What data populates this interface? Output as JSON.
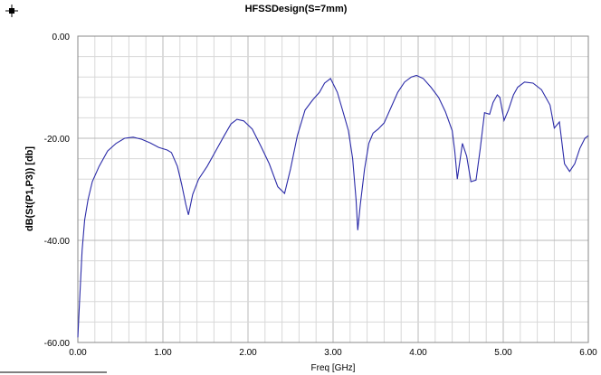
{
  "chart_data": {
    "type": "line",
    "title": "HFSSDesign(S=7mm)",
    "xlabel": "Freq [GHz]",
    "ylabel": "dB(St(P1,P3)) [db]",
    "xlim": [
      0.0,
      6.0
    ],
    "ylim": [
      -60.0,
      0.0
    ],
    "x_ticks": [
      "0.00",
      "1.00",
      "2.00",
      "3.00",
      "4.00",
      "5.00",
      "6.00"
    ],
    "y_ticks": [
      "0.00",
      "-20.00",
      "-40.00",
      "-60.00"
    ],
    "grid": true,
    "series_color": "#2b2ba8",
    "series": [
      {
        "points": [
          [
            0.0,
            -59.0
          ],
          [
            0.02,
            -52.0
          ],
          [
            0.05,
            -42.0
          ],
          [
            0.08,
            -36.0
          ],
          [
            0.12,
            -32.0
          ],
          [
            0.17,
            -28.5
          ],
          [
            0.25,
            -25.5
          ],
          [
            0.35,
            -22.5
          ],
          [
            0.45,
            -21.0
          ],
          [
            0.55,
            -20.0
          ],
          [
            0.65,
            -19.8
          ],
          [
            0.75,
            -20.2
          ],
          [
            0.85,
            -20.9
          ],
          [
            0.95,
            -21.8
          ],
          [
            1.05,
            -22.3
          ],
          [
            1.1,
            -22.8
          ],
          [
            1.17,
            -25.5
          ],
          [
            1.22,
            -29.0
          ],
          [
            1.27,
            -33.0
          ],
          [
            1.3,
            -35.0
          ],
          [
            1.35,
            -31.0
          ],
          [
            1.42,
            -28.0
          ],
          [
            1.52,
            -25.5
          ],
          [
            1.62,
            -22.5
          ],
          [
            1.72,
            -19.5
          ],
          [
            1.8,
            -17.2
          ],
          [
            1.87,
            -16.3
          ],
          [
            1.95,
            -16.6
          ],
          [
            2.05,
            -18.2
          ],
          [
            2.15,
            -21.5
          ],
          [
            2.25,
            -25.0
          ],
          [
            2.35,
            -29.5
          ],
          [
            2.43,
            -30.8
          ],
          [
            2.5,
            -26.0
          ],
          [
            2.58,
            -19.5
          ],
          [
            2.67,
            -14.5
          ],
          [
            2.76,
            -12.5
          ],
          [
            2.84,
            -11.0
          ],
          [
            2.9,
            -9.2
          ],
          [
            2.97,
            -8.3
          ],
          [
            3.05,
            -11.0
          ],
          [
            3.12,
            -15.0
          ],
          [
            3.18,
            -18.5
          ],
          [
            3.23,
            -24.0
          ],
          [
            3.27,
            -32.0
          ],
          [
            3.29,
            -38.0
          ],
          [
            3.32,
            -33.0
          ],
          [
            3.37,
            -26.0
          ],
          [
            3.42,
            -21.0
          ],
          [
            3.47,
            -19.0
          ],
          [
            3.53,
            -18.2
          ],
          [
            3.6,
            -17.0
          ],
          [
            3.68,
            -14.0
          ],
          [
            3.76,
            -11.0
          ],
          [
            3.84,
            -9.0
          ],
          [
            3.92,
            -8.0
          ],
          [
            3.98,
            -7.7
          ],
          [
            4.06,
            -8.3
          ],
          [
            4.15,
            -10.0
          ],
          [
            4.24,
            -12.0
          ],
          [
            4.32,
            -14.8
          ],
          [
            4.4,
            -18.5
          ],
          [
            4.43,
            -22.5
          ],
          [
            4.46,
            -28.0
          ],
          [
            4.49,
            -24.5
          ],
          [
            4.52,
            -21.0
          ],
          [
            4.57,
            -23.5
          ],
          [
            4.62,
            -28.5
          ],
          [
            4.68,
            -28.2
          ],
          [
            4.73,
            -22.0
          ],
          [
            4.78,
            -15.0
          ],
          [
            4.84,
            -15.3
          ],
          [
            4.88,
            -13.0
          ],
          [
            4.93,
            -11.5
          ],
          [
            4.96,
            -12.0
          ],
          [
            5.01,
            -16.5
          ],
          [
            5.06,
            -14.5
          ],
          [
            5.12,
            -11.5
          ],
          [
            5.17,
            -10.0
          ],
          [
            5.25,
            -9.0
          ],
          [
            5.35,
            -9.2
          ],
          [
            5.45,
            -10.5
          ],
          [
            5.55,
            -13.5
          ],
          [
            5.6,
            -18.0
          ],
          [
            5.66,
            -16.8
          ],
          [
            5.72,
            -25.0
          ],
          [
            5.78,
            -26.5
          ],
          [
            5.84,
            -25.0
          ],
          [
            5.9,
            -22.0
          ],
          [
            5.96,
            -20.0
          ],
          [
            6.0,
            -19.5
          ]
        ]
      }
    ]
  }
}
